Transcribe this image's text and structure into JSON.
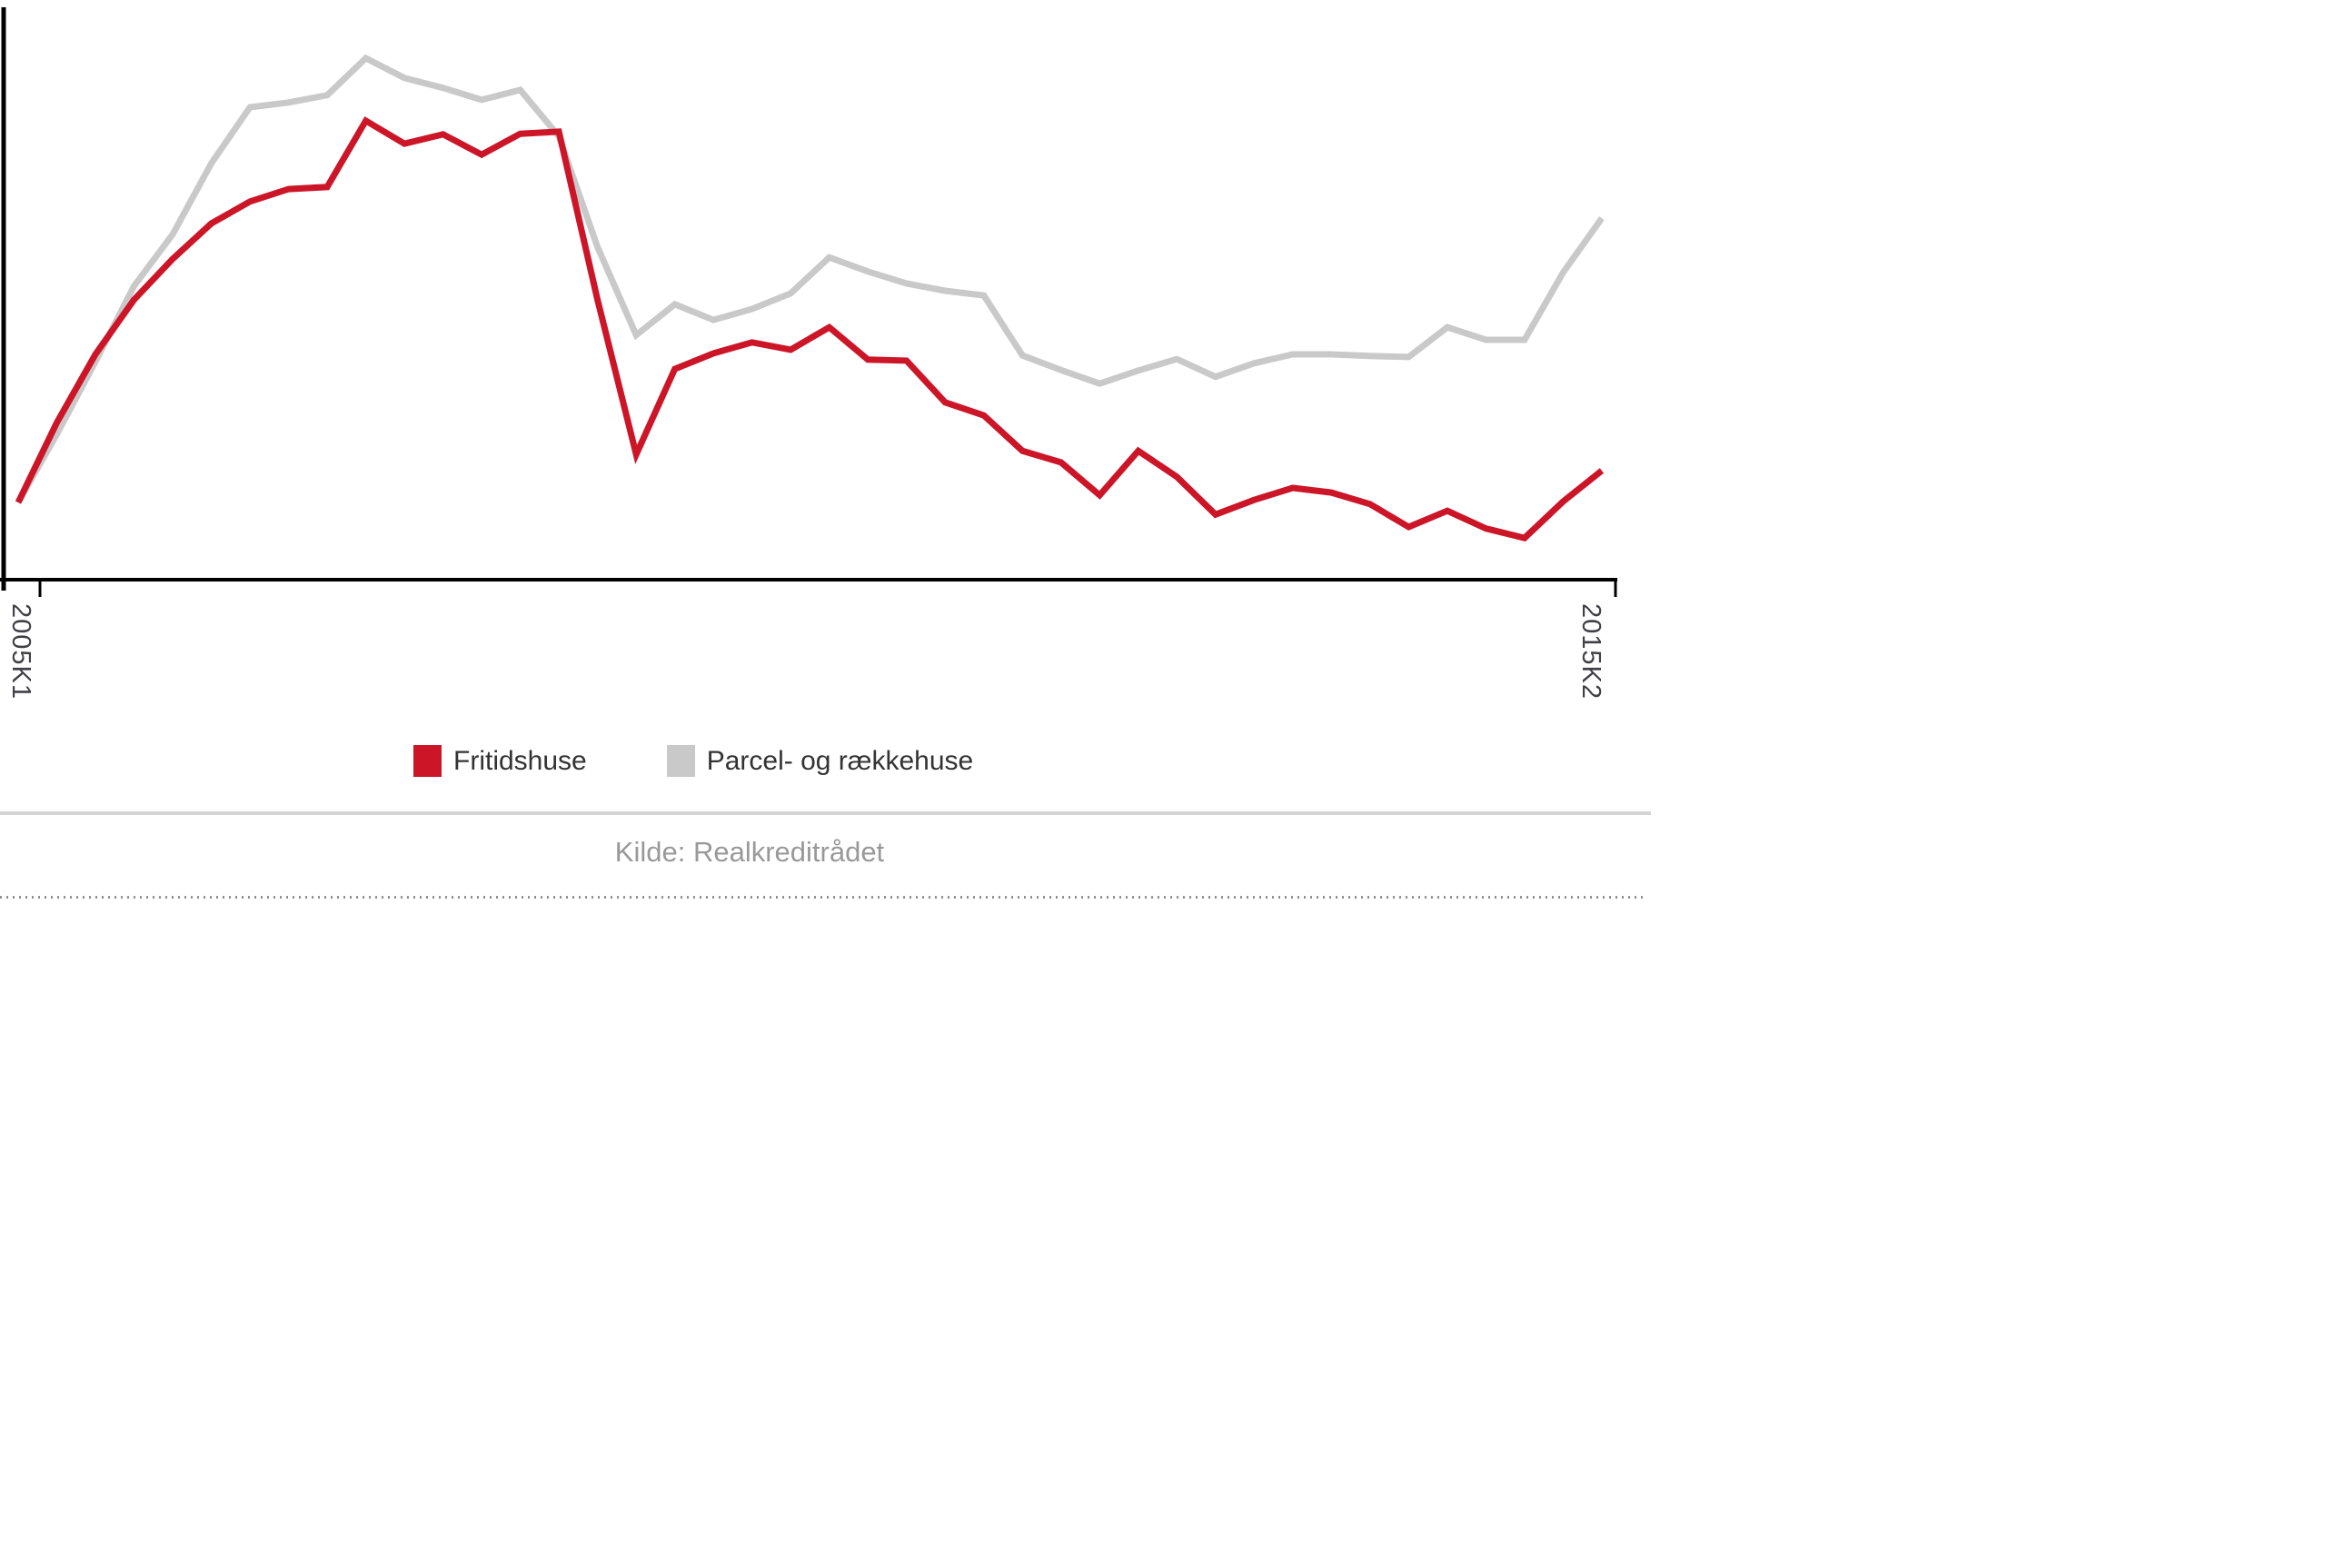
{
  "chart_data": {
    "type": "line",
    "title": "",
    "xlabel": "",
    "ylabel": "",
    "grid": false,
    "legend_position": "bottom",
    "x_axis": {
      "unit": "quarter",
      "ticks": [
        {
          "label": "2005K1",
          "index": 0
        },
        {
          "label": "2015K2",
          "index": 41
        }
      ],
      "num_points": 42
    },
    "y_axis": {
      "visible_labels": false,
      "range": [
        0,
        105
      ]
    },
    "series": [
      {
        "name": "Fritidshuse",
        "color": "#cc1628",
        "values": [
          14.8,
          30.1,
          43.2,
          53.7,
          61.5,
          68.3,
          72.5,
          74.9,
          75.3,
          88.0,
          83.6,
          85.4,
          81.5,
          85.5,
          85.9,
          53.7,
          24.0,
          40.4,
          43.4,
          45.5,
          44.1,
          48.4,
          42.2,
          42.0,
          34.0,
          31.5,
          24.7,
          22.5,
          16.2,
          24.7,
          19.7,
          12.5,
          15.3,
          17.6,
          16.7,
          14.5,
          10.1,
          13.2,
          9.8,
          8.0,
          15.0,
          20.9
        ]
      },
      {
        "name": "Parcel- og rækkehuse",
        "color": "#c9c9c9",
        "values": [
          14.8,
          27.9,
          41.8,
          56.3,
          66.2,
          79.8,
          90.6,
          91.5,
          92.9,
          100.0,
          96.2,
          94.3,
          92.0,
          93.9,
          85.0,
          63.8,
          46.9,
          52.8,
          49.8,
          51.9,
          54.9,
          61.8,
          59.1,
          56.8,
          55.4,
          54.5,
          43.0,
          40.2,
          37.6,
          40.1,
          42.3,
          38.9,
          41.5,
          43.2,
          43.2,
          42.9,
          42.7,
          48.4,
          46.0,
          46.0,
          58.9,
          69.3
        ]
      }
    ]
  },
  "legend": {
    "items": [
      {
        "label": "Fritidshuse",
        "color": "#cc1628"
      },
      {
        "label": "Parcel- og rækkehuse",
        "color": "#c9c9c9"
      }
    ]
  },
  "source": {
    "text": "Kilde: Realkreditrådet"
  },
  "colors": {
    "axis": "#000000",
    "tick_label": "#3f3f44",
    "legend_text": "#333333",
    "source_text": "#999999",
    "divider": "#d4d4d4",
    "dotted": "#909090"
  }
}
